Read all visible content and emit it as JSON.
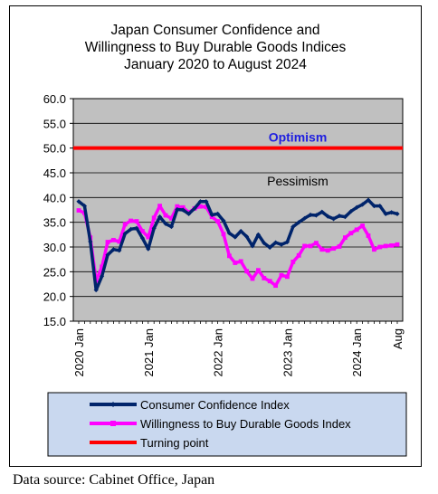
{
  "chart_data": {
    "type": "line",
    "title": "Japan Consumer Confidence and\nWillingness to Buy Durable Goods Indices\nJanuary 2020 to August  2024",
    "ylim": [
      15,
      60
    ],
    "y_ticks": [
      "15.0",
      "20.0",
      "25.0",
      "30.0",
      "35.0",
      "40.0",
      "45.0",
      "50.0",
      "55.0",
      "60.0"
    ],
    "x_tick_labels": [
      "2020 Jan",
      "2021 Jan",
      "2022 Jan",
      "2023 Jan",
      "2024 Jan",
      "Aug"
    ],
    "x_tick_months": [
      0,
      12,
      24,
      36,
      48,
      55
    ],
    "annotations": {
      "optimism": "Optimism",
      "pessimism": "Pessimism"
    },
    "background_color": "#c0c0c0",
    "grid": true,
    "legend_position": "bottom",
    "series": [
      {
        "name": "Consumer Confidence Index",
        "color": "#00246b",
        "values": [
          39.2,
          38.3,
          31.1,
          21.3,
          24.1,
          28.4,
          29.5,
          29.3,
          32.7,
          33.6,
          33.8,
          31.8,
          29.6,
          33.8,
          36.1,
          34.7,
          34.1,
          37.6,
          37.5,
          36.7,
          37.8,
          39.2,
          39.2,
          36.5,
          36.7,
          35.3,
          32.8,
          32.0,
          33.2,
          32.1,
          30.2,
          32.5,
          30.8,
          29.9,
          30.9,
          30.5,
          31.0,
          34.1,
          35.0,
          35.8,
          36.5,
          36.4,
          37.1,
          36.2,
          35.7,
          36.3,
          36.1,
          37.2,
          38.0,
          38.6,
          39.5,
          38.3,
          38.3,
          36.7,
          37.0,
          36.7
        ]
      },
      {
        "name": "Willingness to Buy Durable Goods Index",
        "color": "#ff00ff",
        "values": [
          37.4,
          36.9,
          31.9,
          23.2,
          26.0,
          31.0,
          31.4,
          31.1,
          34.6,
          35.3,
          35.2,
          33.2,
          32.0,
          35.9,
          38.3,
          36.4,
          35.8,
          38.2,
          38.0,
          37.0,
          37.8,
          38.2,
          38.1,
          36.1,
          35.2,
          32.6,
          28.2,
          26.8,
          27.1,
          25.1,
          23.6,
          25.3,
          23.7,
          23.1,
          22.2,
          24.3,
          24.0,
          27.0,
          28.3,
          30.2,
          30.2,
          30.8,
          29.5,
          29.3,
          29.7,
          30.1,
          31.9,
          32.8,
          33.5,
          34.3,
          32.3,
          29.5,
          30.0,
          30.2,
          30.3,
          30.5
        ]
      },
      {
        "name": "Turning point",
        "color": "#ff0000",
        "values": [
          50,
          50
        ]
      }
    ]
  },
  "source": "Data source: Cabinet Office, Japan"
}
